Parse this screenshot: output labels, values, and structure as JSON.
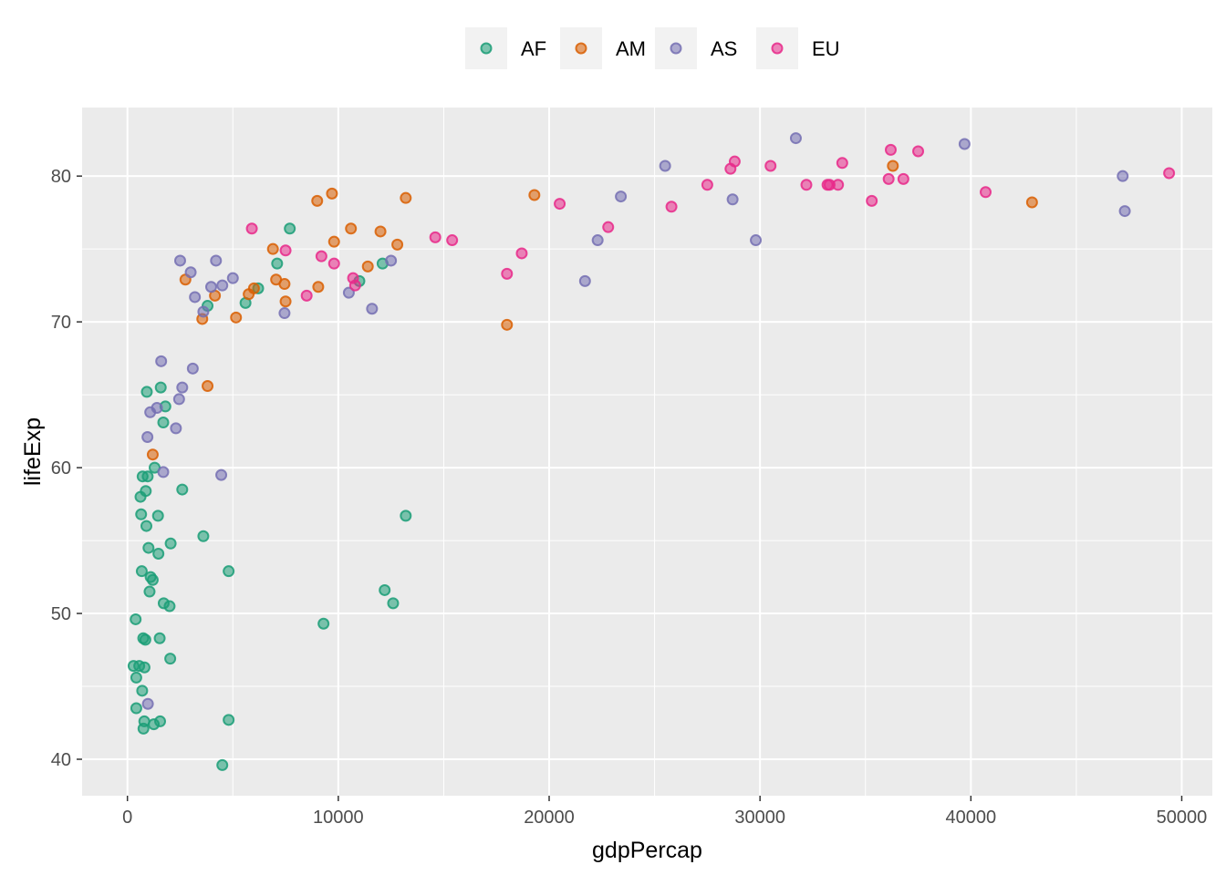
{
  "chart_data": {
    "type": "scatter",
    "xlabel": "gdpPercap",
    "ylabel": "lifeExp",
    "xlim": [
      -2150,
      51450
    ],
    "ylim": [
      37.5,
      84.7
    ],
    "x_ticks": [
      0,
      10000,
      20000,
      30000,
      40000,
      50000
    ],
    "y_ticks": [
      40,
      50,
      60,
      70,
      80
    ],
    "grid": true,
    "legend_position": "top",
    "series": [
      {
        "name": "AF",
        "color": "#1B9E77",
        "points": [
          [
            290,
            46.4
          ],
          [
            420,
            45.6
          ],
          [
            390,
            49.6
          ],
          [
            420,
            43.5
          ],
          [
            560,
            46.4
          ],
          [
            620,
            58.0
          ],
          [
            650,
            56.8
          ],
          [
            680,
            52.9
          ],
          [
            700,
            44.7
          ],
          [
            720,
            59.4
          ],
          [
            750,
            48.3
          ],
          [
            760,
            42.1
          ],
          [
            800,
            42.6
          ],
          [
            810,
            46.3
          ],
          [
            850,
            48.2
          ],
          [
            870,
            58.4
          ],
          [
            900,
            56.0
          ],
          [
            920,
            65.2
          ],
          [
            960,
            59.4
          ],
          [
            1000,
            54.5
          ],
          [
            1050,
            51.5
          ],
          [
            1100,
            52.5
          ],
          [
            1200,
            52.3
          ],
          [
            1250,
            42.4
          ],
          [
            1290,
            60.0
          ],
          [
            1450,
            56.7
          ],
          [
            1470,
            54.1
          ],
          [
            1530,
            48.3
          ],
          [
            1550,
            42.6
          ],
          [
            1580,
            65.5
          ],
          [
            1700,
            63.1
          ],
          [
            1720,
            50.7
          ],
          [
            1800,
            64.2
          ],
          [
            2000,
            50.5
          ],
          [
            2030,
            46.9
          ],
          [
            2050,
            54.8
          ],
          [
            2600,
            58.5
          ],
          [
            3600,
            55.3
          ],
          [
            3800,
            71.1
          ],
          [
            4500,
            39.6
          ],
          [
            4800,
            52.9
          ],
          [
            4800,
            42.7
          ],
          [
            5600,
            71.3
          ],
          [
            6200,
            72.3
          ],
          [
            7100,
            74.0
          ],
          [
            7700,
            76.4
          ],
          [
            9300,
            49.3
          ],
          [
            11000,
            72.8
          ],
          [
            12100,
            74.0
          ],
          [
            12200,
            51.6
          ],
          [
            12600,
            50.7
          ],
          [
            13200,
            56.7
          ]
        ]
      },
      {
        "name": "AM",
        "color": "#D95F02",
        "points": [
          [
            1200,
            60.9
          ],
          [
            2750,
            72.9
          ],
          [
            3550,
            70.2
          ],
          [
            3800,
            65.6
          ],
          [
            4150,
            71.8
          ],
          [
            5150,
            70.3
          ],
          [
            5750,
            71.9
          ],
          [
            6000,
            72.3
          ],
          [
            6900,
            75.0
          ],
          [
            7050,
            72.9
          ],
          [
            7450,
            72.6
          ],
          [
            7500,
            71.4
          ],
          [
            9000,
            78.3
          ],
          [
            9050,
            72.4
          ],
          [
            9700,
            78.8
          ],
          [
            9800,
            75.5
          ],
          [
            10600,
            76.4
          ],
          [
            11400,
            73.8
          ],
          [
            12000,
            76.2
          ],
          [
            12800,
            75.3
          ],
          [
            13200,
            78.5
          ],
          [
            18000,
            69.8
          ],
          [
            19300,
            78.7
          ],
          [
            36300,
            80.7
          ],
          [
            42900,
            78.2
          ]
        ]
      },
      {
        "name": "AS",
        "color": "#7570B3",
        "points": [
          [
            950,
            62.1
          ],
          [
            970,
            43.8
          ],
          [
            1080,
            63.8
          ],
          [
            1400,
            64.1
          ],
          [
            1600,
            67.3
          ],
          [
            1700,
            59.7
          ],
          [
            2300,
            62.7
          ],
          [
            2450,
            64.7
          ],
          [
            2500,
            74.2
          ],
          [
            2600,
            65.5
          ],
          [
            3000,
            73.4
          ],
          [
            3100,
            66.8
          ],
          [
            3200,
            71.7
          ],
          [
            3600,
            70.7
          ],
          [
            3970,
            72.4
          ],
          [
            4200,
            74.2
          ],
          [
            4450,
            59.5
          ],
          [
            4500,
            72.5
          ],
          [
            5000,
            73.0
          ],
          [
            7450,
            70.6
          ],
          [
            10500,
            72.0
          ],
          [
            11600,
            70.9
          ],
          [
            12500,
            74.2
          ],
          [
            21700,
            72.8
          ],
          [
            22300,
            75.6
          ],
          [
            23400,
            78.6
          ],
          [
            25500,
            80.7
          ],
          [
            28700,
            78.4
          ],
          [
            29800,
            75.6
          ],
          [
            31700,
            82.6
          ],
          [
            39700,
            82.2
          ],
          [
            47200,
            80.0
          ],
          [
            47300,
            77.6
          ]
        ]
      },
      {
        "name": "EU",
        "color": "#E7298A",
        "points": [
          [
            5900,
            76.4
          ],
          [
            7500,
            74.9
          ],
          [
            8500,
            71.8
          ],
          [
            9200,
            74.5
          ],
          [
            9800,
            74.0
          ],
          [
            10700,
            73.0
          ],
          [
            10800,
            72.5
          ],
          [
            14600,
            75.8
          ],
          [
            15400,
            75.6
          ],
          [
            18000,
            73.3
          ],
          [
            18700,
            74.7
          ],
          [
            20500,
            78.1
          ],
          [
            22800,
            76.5
          ],
          [
            25800,
            77.9
          ],
          [
            27500,
            79.4
          ],
          [
            28600,
            80.5
          ],
          [
            28800,
            81.0
          ],
          [
            30500,
            80.7
          ],
          [
            32200,
            79.4
          ],
          [
            33200,
            79.4
          ],
          [
            33300,
            79.4
          ],
          [
            33700,
            79.4
          ],
          [
            33900,
            80.9
          ],
          [
            35300,
            78.3
          ],
          [
            36100,
            79.8
          ],
          [
            36200,
            81.8
          ],
          [
            36800,
            79.8
          ],
          [
            37500,
            81.7
          ],
          [
            40700,
            78.9
          ],
          [
            49400,
            80.2
          ]
        ]
      }
    ]
  }
}
